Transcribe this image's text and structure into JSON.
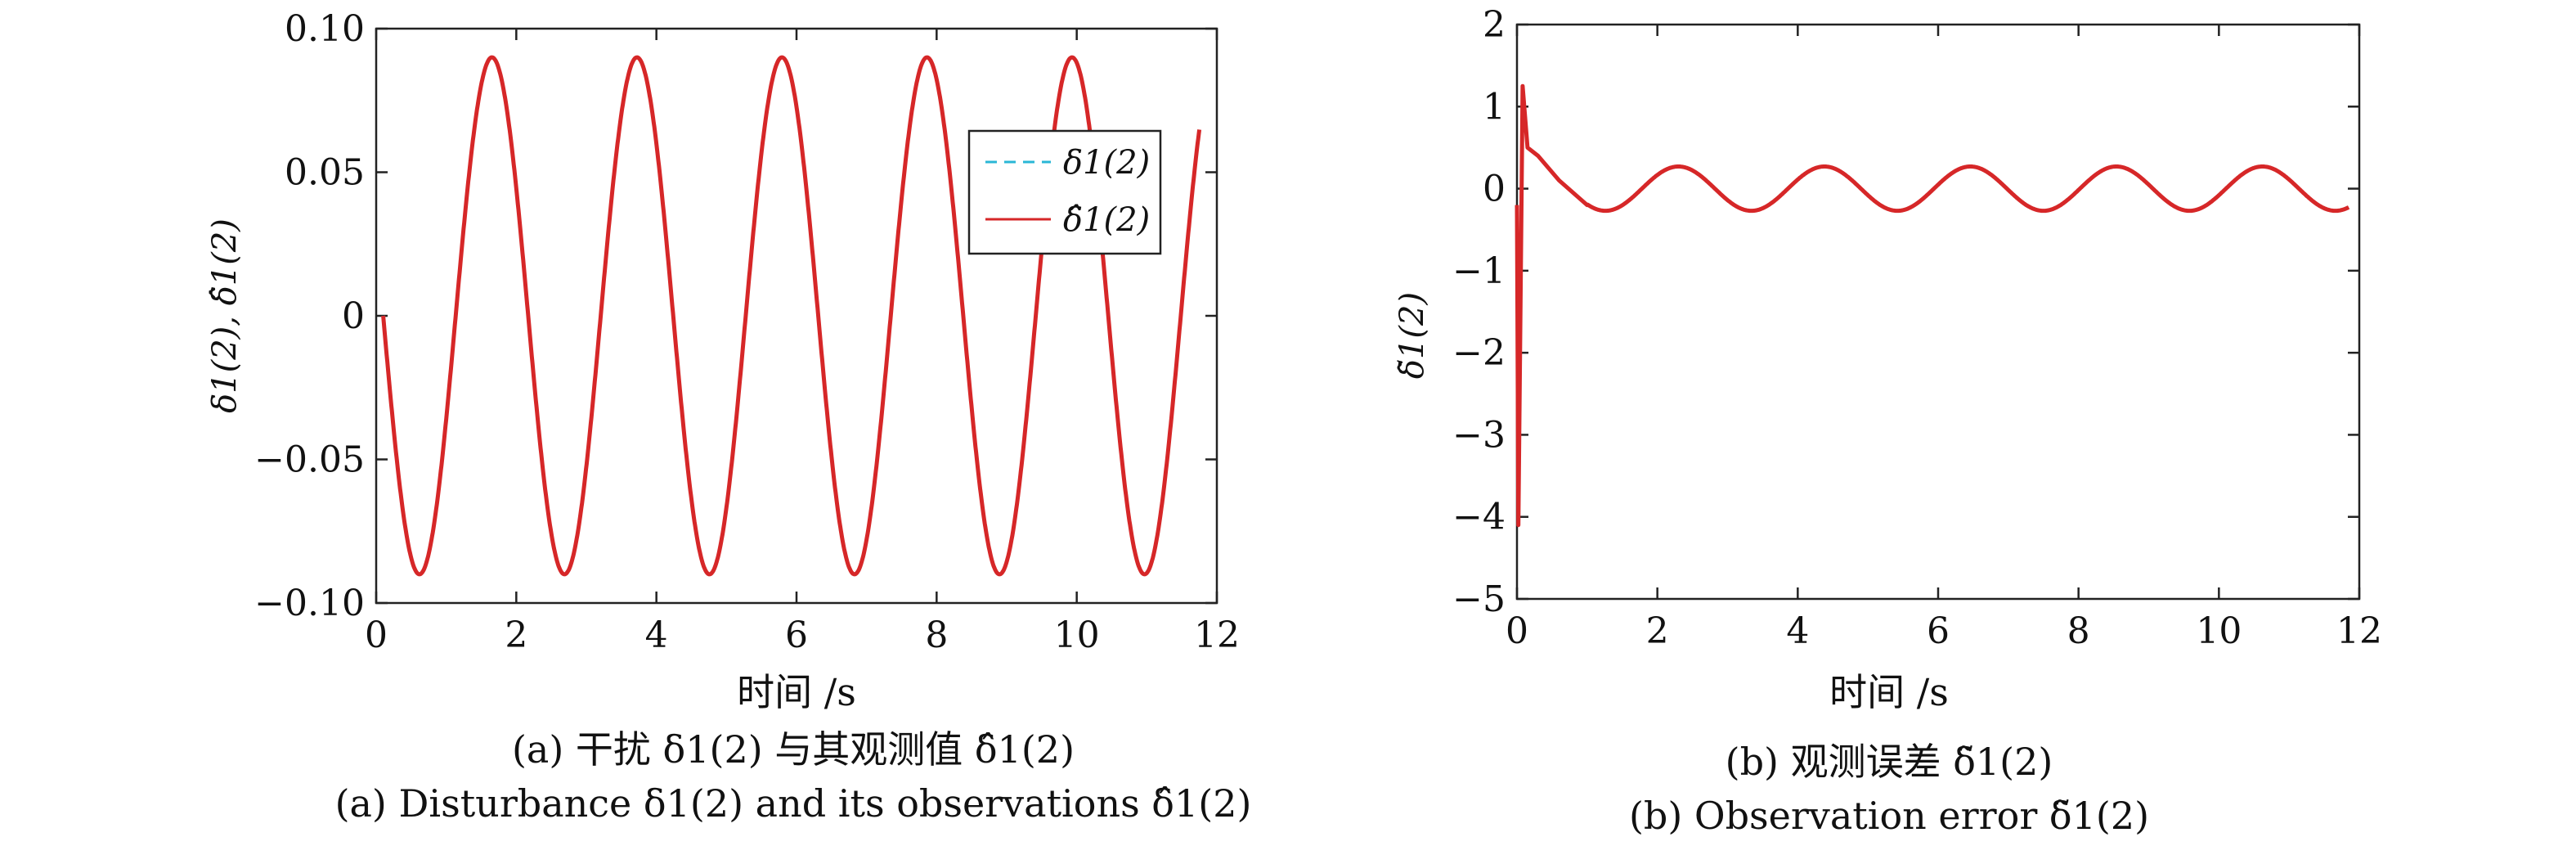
{
  "chart_data": [
    {
      "type": "line",
      "panel": "a",
      "xlabel": "时间 /s",
      "ylabel": "δ1(2), δ̂1(2)",
      "xlim": [
        0,
        12
      ],
      "ylim": [
        -0.1,
        0.1
      ],
      "xticks": [
        "0",
        "2",
        "4",
        "6",
        "8",
        "10",
        "12"
      ],
      "xtick_values": [
        0,
        2,
        4,
        6,
        8,
        10,
        12
      ],
      "yticks": [
        "0.10",
        "0.05",
        "0",
        "−0.05",
        "−0.10"
      ],
      "ytick_values": [
        0.1,
        0.05,
        0,
        -0.05,
        -0.1
      ],
      "grid": false,
      "legend_position": "top-right",
      "series": [
        {
          "name": "δ1(2)",
          "style": "dashed",
          "color": "#2ab7d6",
          "function": "sine",
          "amplitude": 0.09,
          "period": 2.07,
          "x_start": 0.1,
          "x_end": 11.75
        },
        {
          "name": "δ̂1(2)",
          "style": "solid",
          "color": "#d62728",
          "function": "sine",
          "amplitude": 0.09,
          "period": 2.07,
          "x_start": 0.1,
          "x_end": 11.75
        }
      ],
      "caption_cn": "(a) 干扰 δ1(2) 与其观测值 δ̂1(2)",
      "caption_en": "(a) Disturbance δ1(2) and its observations δ̂1(2)"
    },
    {
      "type": "line",
      "panel": "b",
      "xlabel": "时间 /s",
      "ylabel": "δ̃1(2)",
      "xlim": [
        0,
        12
      ],
      "ylim": [
        -5,
        2
      ],
      "xticks": [
        "0",
        "2",
        "4",
        "6",
        "8",
        "10",
        "12"
      ],
      "xtick_values": [
        0,
        2,
        4,
        6,
        8,
        10,
        12
      ],
      "yticks": [
        "2",
        "1",
        "0",
        "−1",
        "−2",
        "−3",
        "−4",
        "−5"
      ],
      "ytick_values": [
        2,
        1,
        0,
        -1,
        -2,
        -3,
        -4,
        -5
      ],
      "grid": false,
      "series": [
        {
          "name": "δ̃1(2)",
          "style": "solid",
          "color": "#d62728",
          "transient": [
            [
              0,
              -0.2
            ],
            [
              0.02,
              -4.1
            ],
            [
              0.08,
              1.25
            ],
            [
              0.15,
              0.5
            ],
            [
              0.3,
              0.4
            ],
            [
              0.6,
              0.1
            ],
            [
              1.0,
              -0.2
            ]
          ],
          "steady_function": "sine",
          "amplitude": 0.27,
          "period": 2.08,
          "phase_peak_x": 2.3,
          "x_end": 11.85
        }
      ],
      "caption_cn": "(b) 观测误差 δ̃1(2)",
      "caption_en": "(b) Observation error δ̃1(2)"
    }
  ]
}
